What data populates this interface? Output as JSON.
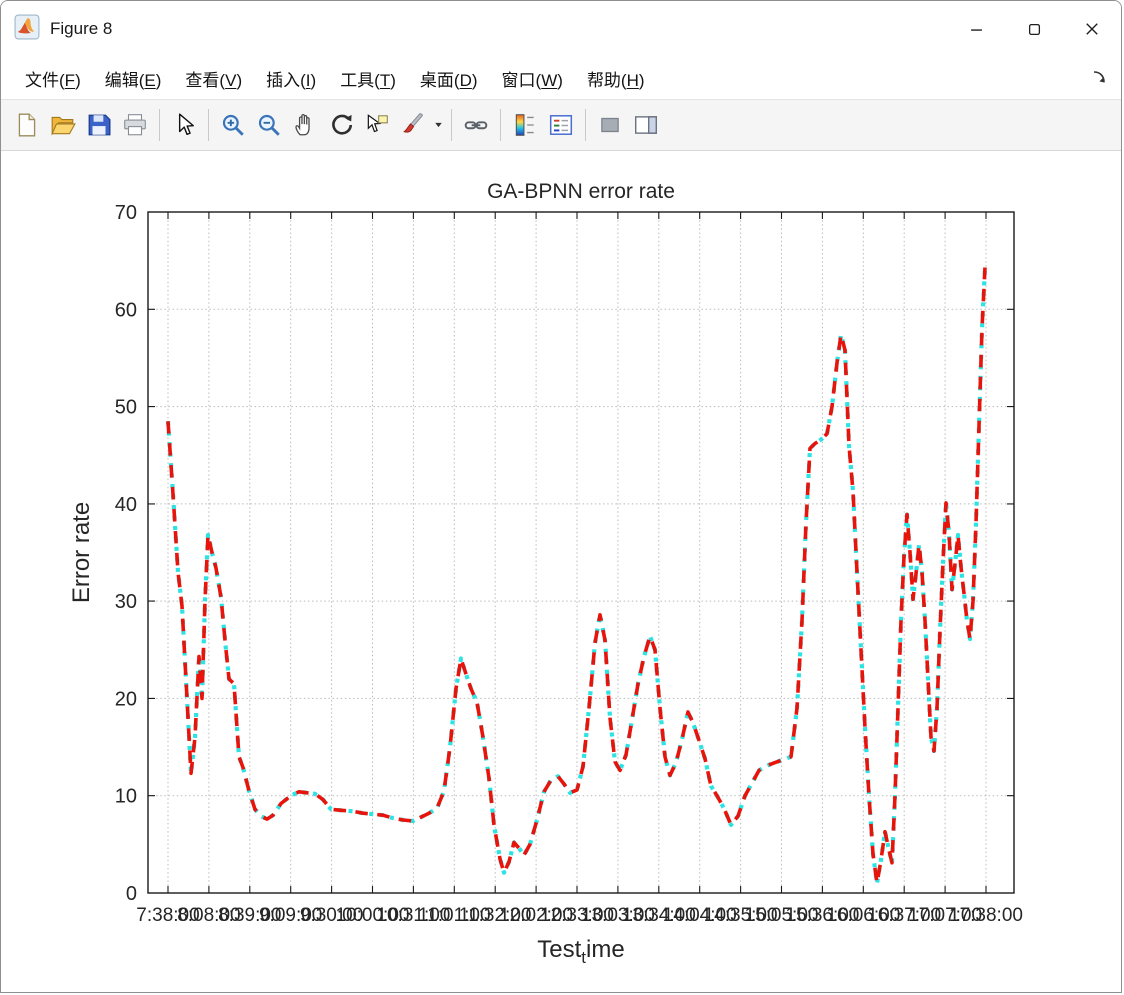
{
  "window": {
    "title": "Figure 8",
    "controls": [
      "minimize",
      "maximize",
      "close"
    ]
  },
  "menu": {
    "items": [
      {
        "text": "文件",
        "key": "F"
      },
      {
        "text": "编辑",
        "key": "E"
      },
      {
        "text": "查看",
        "key": "V"
      },
      {
        "text": "插入",
        "key": "I"
      },
      {
        "text": "工具",
        "key": "T"
      },
      {
        "text": "桌面",
        "key": "D"
      },
      {
        "text": "窗口",
        "key": "W"
      },
      {
        "text": "帮助",
        "key": "H"
      }
    ]
  },
  "toolbar": {
    "groups": [
      [
        "new-file",
        "open-folder",
        "save-figure",
        "print-figure"
      ],
      [
        "arrow-cursor"
      ],
      [
        "zoom-in",
        "zoom-out",
        "pan-hand",
        "rotate-3d",
        "data-cursor",
        "brush",
        "brush-dropdown"
      ],
      [
        "link-plots"
      ],
      [
        "insert-colorbar",
        "insert-legend"
      ],
      [
        "hide-plot-tools",
        "show-plot-tools"
      ]
    ]
  },
  "chart_data": {
    "type": "line",
    "title": "GA-BPNN error rate",
    "ylabel": "Error rate",
    "xlabel": {
      "pre": "Test",
      "sub": "t",
      "post": "ime"
    },
    "ylim": [
      0,
      70
    ],
    "yticks": [
      0,
      10,
      20,
      30,
      40,
      50,
      60,
      70
    ],
    "xticklabels": [
      "7:38:00",
      "8:08:00",
      "8:39:00",
      "9:09:00",
      "9:30:00",
      "10:00:00",
      "10:31:00",
      "11:01:00",
      "11:32:00",
      "12:02:00",
      "12:33:00",
      "13:03:00",
      "13:34:00",
      "14:04:00",
      "14:35:00",
      "15:05:00",
      "15:36:00",
      "16:06:00",
      "16:37:00",
      "17:07:00",
      "17:38:00"
    ],
    "grid": true,
    "legend_position": "none",
    "series": [
      {
        "name": "error-rate-overlay",
        "color": "#2ce2e2",
        "style": "dotted",
        "width": 4.2
      },
      {
        "name": "error-rate",
        "color": "#e8140c",
        "style": "dashed",
        "width": 3.6
      }
    ],
    "x_units": "pixel fraction of plot width (0-866) spanning 7:38:00 to 17:38:00",
    "points": [
      [
        20,
        48.5
      ],
      [
        25,
        41
      ],
      [
        30,
        33
      ],
      [
        34,
        29.5
      ],
      [
        39,
        20
      ],
      [
        43,
        12.3
      ],
      [
        47,
        16
      ],
      [
        51,
        24.3
      ],
      [
        54,
        20
      ],
      [
        57,
        30
      ],
      [
        60,
        36.8
      ],
      [
        64,
        35
      ],
      [
        68,
        33.4
      ],
      [
        73,
        30.4
      ],
      [
        77,
        26
      ],
      [
        81,
        22
      ],
      [
        86,
        21.5
      ],
      [
        91,
        14
      ],
      [
        95,
        12.9
      ],
      [
        101,
        10.5
      ],
      [
        107,
        8.6
      ],
      [
        113,
        7.9
      ],
      [
        119,
        7.6
      ],
      [
        125,
        8
      ],
      [
        133,
        9.2
      ],
      [
        143,
        10
      ],
      [
        151,
        10.4
      ],
      [
        159,
        10.3
      ],
      [
        167,
        10.2
      ],
      [
        175,
        9.6
      ],
      [
        183,
        8.6
      ],
      [
        193,
        8.5
      ],
      [
        205,
        8.4
      ],
      [
        215,
        8.2
      ],
      [
        225,
        8.1
      ],
      [
        235,
        8
      ],
      [
        245,
        7.7
      ],
      [
        255,
        7.5
      ],
      [
        265,
        7.4
      ],
      [
        273,
        7.8
      ],
      [
        281,
        8.2
      ],
      [
        289,
        8.7
      ],
      [
        296,
        10.5
      ],
      [
        302,
        15
      ],
      [
        308,
        21
      ],
      [
        313,
        24.1
      ],
      [
        318,
        22.5
      ],
      [
        323,
        21
      ],
      [
        329,
        19.6
      ],
      [
        335,
        16
      ],
      [
        341,
        11.8
      ],
      [
        346,
        7
      ],
      [
        352,
        3.5
      ],
      [
        356,
        2.1
      ],
      [
        361,
        3.2
      ],
      [
        366,
        5.2
      ],
      [
        371,
        4.6
      ],
      [
        376,
        3.9
      ],
      [
        382,
        5
      ],
      [
        389,
        7.5
      ],
      [
        396,
        10.4
      ],
      [
        403,
        11.6
      ],
      [
        410,
        12
      ],
      [
        416,
        11.2
      ],
      [
        422,
        10.3
      ],
      [
        429,
        10.6
      ],
      [
        435,
        13
      ],
      [
        441,
        19
      ],
      [
        447,
        25.7
      ],
      [
        452,
        28.6
      ],
      [
        457,
        26
      ],
      [
        462,
        18
      ],
      [
        467,
        13.5
      ],
      [
        472,
        12.6
      ],
      [
        478,
        14.2
      ],
      [
        484,
        17.8
      ],
      [
        490,
        21.5
      ],
      [
        496,
        24.3
      ],
      [
        502,
        26.4
      ],
      [
        507,
        25
      ],
      [
        512,
        19
      ],
      [
        517,
        14
      ],
      [
        522,
        12.1
      ],
      [
        528,
        13.4
      ],
      [
        534,
        15.8
      ],
      [
        540,
        18.6
      ],
      [
        545,
        17.5
      ],
      [
        551,
        15.7
      ],
      [
        557,
        13.8
      ],
      [
        563,
        11
      ],
      [
        569,
        10
      ],
      [
        576,
        8.7
      ],
      [
        583,
        7
      ],
      [
        590,
        7.9
      ],
      [
        597,
        10
      ],
      [
        604,
        11.3
      ],
      [
        611,
        12.6
      ],
      [
        619,
        13.1
      ],
      [
        627,
        13.4
      ],
      [
        635,
        13.7
      ],
      [
        643,
        14
      ],
      [
        649,
        19
      ],
      [
        654,
        28
      ],
      [
        658,
        38
      ],
      [
        662,
        45.7
      ],
      [
        667,
        46.2
      ],
      [
        673,
        46.6
      ],
      [
        679,
        47.2
      ],
      [
        684,
        50
      ],
      [
        689,
        54.5
      ],
      [
        693,
        57.4
      ],
      [
        697,
        55.8
      ],
      [
        701,
        46
      ],
      [
        705,
        41.3
      ],
      [
        709,
        33
      ],
      [
        713,
        25
      ],
      [
        717,
        17
      ],
      [
        721,
        10
      ],
      [
        725,
        4
      ],
      [
        729,
        1
      ],
      [
        733,
        3.4
      ],
      [
        737,
        6.3
      ],
      [
        741,
        4.4
      ],
      [
        744,
        3.1
      ],
      [
        747,
        10
      ],
      [
        750,
        19
      ],
      [
        753,
        28
      ],
      [
        756,
        34.6
      ],
      [
        759,
        38.9
      ],
      [
        762,
        35
      ],
      [
        765,
        30.2
      ],
      [
        768,
        32.8
      ],
      [
        771,
        35.8
      ],
      [
        774,
        33
      ],
      [
        777,
        28
      ],
      [
        780,
        22
      ],
      [
        783,
        16
      ],
      [
        786,
        14.6
      ],
      [
        789,
        19
      ],
      [
        792,
        27
      ],
      [
        795,
        34
      ],
      [
        798,
        40.1
      ],
      [
        801,
        37
      ],
      [
        804,
        31.2
      ],
      [
        807,
        33.8
      ],
      [
        810,
        36.8
      ],
      [
        813,
        33.5
      ],
      [
        816,
        30.8
      ],
      [
        819,
        28
      ],
      [
        822,
        26.1
      ],
      [
        825,
        30
      ],
      [
        828,
        38
      ],
      [
        831,
        48
      ],
      [
        834,
        58
      ],
      [
        837,
        64.3
      ]
    ]
  }
}
